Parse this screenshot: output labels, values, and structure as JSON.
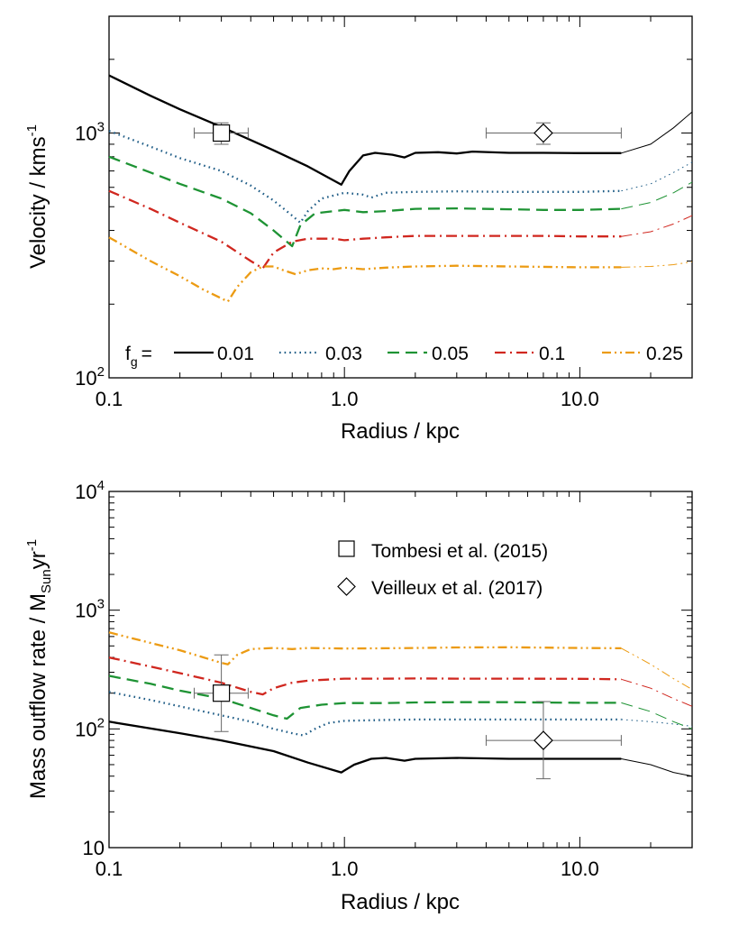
{
  "chart_data": [
    {
      "type": "line",
      "xscale": "log",
      "yscale": "log",
      "xlabel": "Radius / kpc",
      "ylabel": "Velocity / kms",
      "ylabel_sup": "-1",
      "xlim": [
        0.1,
        30
      ],
      "ylim": [
        100,
        3000
      ],
      "xticks": [
        {
          "value": 0.1,
          "label": "0.1"
        },
        {
          "value": 1,
          "label": "1.0"
        },
        {
          "value": 10,
          "label": "10.0"
        }
      ],
      "yticks": [
        {
          "value": 100,
          "base": "10",
          "exp": "2"
        },
        {
          "value": 1000,
          "base": "10",
          "exp": "3"
        }
      ],
      "legend": {
        "prefix": "f",
        "prefix_sub": "g",
        "prefix_suffix": "=",
        "placement": "bottom"
      },
      "series": [
        {
          "name": "0.01",
          "color": "#000000",
          "style": "solid",
          "points": [
            [
              0.1,
              1720
            ],
            [
              0.15,
              1420
            ],
            [
              0.2,
              1250
            ],
            [
              0.3,
              1060
            ],
            [
              0.5,
              850
            ],
            [
              0.7,
              730
            ],
            [
              0.97,
              615
            ],
            [
              1.05,
              700
            ],
            [
              1.2,
              810
            ],
            [
              1.35,
              830
            ],
            [
              1.6,
              815
            ],
            [
              1.8,
              795
            ],
            [
              2.0,
              830
            ],
            [
              2.5,
              835
            ],
            [
              3.0,
              825
            ],
            [
              3.5,
              840
            ],
            [
              5,
              830
            ],
            [
              7,
              830
            ],
            [
              10,
              828
            ],
            [
              15,
              828
            ]
          ],
          "ext": [
            [
              15,
              828
            ],
            [
              20,
              900
            ],
            [
              25,
              1050
            ],
            [
              30,
              1220
            ]
          ]
        },
        {
          "name": "0.03",
          "color": "#1e5c86",
          "style": "dotted",
          "points": [
            [
              0.1,
              1020
            ],
            [
              0.15,
              880
            ],
            [
              0.2,
              790
            ],
            [
              0.3,
              700
            ],
            [
              0.4,
              610
            ],
            [
              0.5,
              530
            ],
            [
              0.6,
              460
            ],
            [
              0.65,
              430
            ],
            [
              0.7,
              480
            ],
            [
              0.8,
              540
            ],
            [
              1.0,
              570
            ],
            [
              1.2,
              560
            ],
            [
              1.3,
              545
            ],
            [
              1.5,
              570
            ],
            [
              2,
              575
            ],
            [
              3,
              578
            ],
            [
              5,
              575
            ],
            [
              7,
              575
            ],
            [
              10,
              575
            ],
            [
              15,
              580
            ]
          ],
          "ext": [
            [
              15,
              580
            ],
            [
              20,
              620
            ],
            [
              25,
              690
            ],
            [
              30,
              760
            ]
          ]
        },
        {
          "name": "0.05",
          "color": "#1e9334",
          "style": "dashed",
          "points": [
            [
              0.1,
              800
            ],
            [
              0.15,
              690
            ],
            [
              0.2,
              620
            ],
            [
              0.3,
              540
            ],
            [
              0.4,
              470
            ],
            [
              0.5,
              400
            ],
            [
              0.55,
              370
            ],
            [
              0.6,
              345
            ],
            [
              0.65,
              420
            ],
            [
              0.75,
              470
            ],
            [
              1.0,
              485
            ],
            [
              1.2,
              475
            ],
            [
              1.5,
              480
            ],
            [
              2,
              490
            ],
            [
              3,
              492
            ],
            [
              5,
              488
            ],
            [
              7,
              485
            ],
            [
              10,
              485
            ],
            [
              15,
              490
            ]
          ],
          "ext": [
            [
              15,
              490
            ],
            [
              20,
              520
            ],
            [
              25,
              570
            ],
            [
              30,
              630
            ]
          ]
        },
        {
          "name": "0.1",
          "color": "#d0271f",
          "style": "dashdot",
          "points": [
            [
              0.1,
              580
            ],
            [
              0.15,
              490
            ],
            [
              0.2,
              430
            ],
            [
              0.3,
              360
            ],
            [
              0.4,
              300
            ],
            [
              0.45,
              280
            ],
            [
              0.5,
              325
            ],
            [
              0.6,
              360
            ],
            [
              0.7,
              370
            ],
            [
              0.9,
              370
            ],
            [
              1.0,
              365
            ],
            [
              1.2,
              370
            ],
            [
              1.5,
              375
            ],
            [
              2,
              380
            ],
            [
              3,
              380
            ],
            [
              5,
              380
            ],
            [
              7,
              380
            ],
            [
              10,
              378
            ],
            [
              15,
              378
            ]
          ],
          "ext": [
            [
              15,
              378
            ],
            [
              20,
              395
            ],
            [
              25,
              425
            ],
            [
              30,
              460
            ]
          ]
        },
        {
          "name": "0.25",
          "color": "#ec9b13",
          "style": "dashdotdot",
          "points": [
            [
              0.1,
              375
            ],
            [
              0.15,
              300
            ],
            [
              0.2,
              260
            ],
            [
              0.25,
              230
            ],
            [
              0.32,
              205
            ],
            [
              0.35,
              235
            ],
            [
              0.4,
              270
            ],
            [
              0.45,
              285
            ],
            [
              0.5,
              285
            ],
            [
              0.55,
              275
            ],
            [
              0.62,
              265
            ],
            [
              0.7,
              275
            ],
            [
              0.8,
              280
            ],
            [
              0.9,
              278
            ],
            [
              1.0,
              282
            ],
            [
              1.2,
              278
            ],
            [
              1.5,
              282
            ],
            [
              2,
              285
            ],
            [
              3,
              287
            ],
            [
              5,
              285
            ],
            [
              10,
              283
            ],
            [
              15,
              283
            ]
          ],
          "ext": [
            [
              15,
              283
            ],
            [
              20,
              285
            ],
            [
              25,
              290
            ],
            [
              30,
              298
            ]
          ]
        }
      ],
      "observations": [
        {
          "label": "Tombesi et al. (2015)",
          "marker": "square",
          "x": 0.3,
          "y": 1000,
          "xerr": [
            0.23,
            0.39
          ],
          "yerr": [
            900,
            1100
          ]
        },
        {
          "label": "Veilleux et al. (2017)",
          "marker": "diamond",
          "x": 7,
          "y": 1000,
          "xerr": [
            4,
            15
          ],
          "yerr": [
            900,
            1100
          ]
        }
      ]
    },
    {
      "type": "line",
      "xscale": "log",
      "yscale": "log",
      "xlabel": "Radius / kpc",
      "ylabel": "Mass outflow rate / M",
      "ylabel_sub": "Sun",
      "ylabel_tail": "yr",
      "ylabel_sup": "-1",
      "xlim": [
        0.1,
        30
      ],
      "ylim": [
        10,
        10000
      ],
      "xticks": [
        {
          "value": 0.1,
          "label": "0.1"
        },
        {
          "value": 1,
          "label": "1.0"
        },
        {
          "value": 10,
          "label": "10.0"
        }
      ],
      "yticks": [
        {
          "value": 10,
          "base": "10",
          "exp": ""
        },
        {
          "value": 100,
          "base": "10",
          "exp": "2"
        },
        {
          "value": 1000,
          "base": "10",
          "exp": "3"
        },
        {
          "value": 10000,
          "base": "10",
          "exp": "4"
        }
      ],
      "legend": {
        "placement": "top-center",
        "entries": [
          {
            "marker": "square",
            "label": "Tombesi et al. (2015)"
          },
          {
            "marker": "diamond",
            "label": "Veilleux et al. (2017)"
          }
        ]
      },
      "series": [
        {
          "name": "0.01",
          "color": "#000000",
          "style": "solid",
          "points": [
            [
              0.1,
              115
            ],
            [
              0.2,
              92
            ],
            [
              0.3,
              80
            ],
            [
              0.5,
              65
            ],
            [
              0.7,
              52
            ],
            [
              0.97,
              43
            ],
            [
              1.1,
              50
            ],
            [
              1.3,
              56
            ],
            [
              1.5,
              57
            ],
            [
              1.8,
              54
            ],
            [
              2.0,
              56
            ],
            [
              3,
              57
            ],
            [
              5,
              56
            ],
            [
              10,
              56
            ],
            [
              15,
              56
            ]
          ],
          "ext": [
            [
              15,
              56
            ],
            [
              20,
              50
            ],
            [
              25,
              43
            ],
            [
              30,
              40
            ]
          ]
        },
        {
          "name": "0.03",
          "color": "#1e5c86",
          "style": "dotted",
          "points": [
            [
              0.1,
              205
            ],
            [
              0.15,
              175
            ],
            [
              0.2,
              155
            ],
            [
              0.3,
              130
            ],
            [
              0.4,
              115
            ],
            [
              0.5,
              100
            ],
            [
              0.6,
              92
            ],
            [
              0.67,
              88
            ],
            [
              0.75,
              100
            ],
            [
              0.85,
              112
            ],
            [
              1.0,
              117
            ],
            [
              1.5,
              119
            ],
            [
              2,
              120
            ],
            [
              3,
              120
            ],
            [
              5,
              120
            ],
            [
              10,
              120
            ],
            [
              15,
              120
            ]
          ],
          "ext": [
            [
              15,
              120
            ],
            [
              20,
              115
            ],
            [
              25,
              110
            ],
            [
              30,
              105
            ]
          ]
        },
        {
          "name": "0.05",
          "color": "#1e9334",
          "style": "dashed",
          "points": [
            [
              0.1,
              280
            ],
            [
              0.15,
              240
            ],
            [
              0.2,
              210
            ],
            [
              0.3,
              180
            ],
            [
              0.4,
              150
            ],
            [
              0.5,
              130
            ],
            [
              0.57,
              122
            ],
            [
              0.65,
              150
            ],
            [
              0.8,
              160
            ],
            [
              1.0,
              165
            ],
            [
              1.5,
              165
            ],
            [
              2,
              167
            ],
            [
              3,
              168
            ],
            [
              5,
              168
            ],
            [
              10,
              166
            ],
            [
              15,
              166
            ]
          ],
          "ext": [
            [
              15,
              166
            ],
            [
              20,
              140
            ],
            [
              25,
              115
            ],
            [
              30,
              100
            ]
          ]
        },
        {
          "name": "0.1",
          "color": "#d0271f",
          "style": "dashdot",
          "points": [
            [
              0.1,
              400
            ],
            [
              0.15,
              335
            ],
            [
              0.2,
              295
            ],
            [
              0.3,
              245
            ],
            [
              0.4,
              205
            ],
            [
              0.45,
              195
            ],
            [
              0.5,
              220
            ],
            [
              0.6,
              245
            ],
            [
              0.7,
              255
            ],
            [
              0.9,
              262
            ],
            [
              1.0,
              265
            ],
            [
              1.5,
              265
            ],
            [
              2,
              266
            ],
            [
              3,
              265
            ],
            [
              5,
              265
            ],
            [
              10,
              264
            ],
            [
              15,
              262
            ]
          ],
          "ext": [
            [
              15,
              262
            ],
            [
              20,
              220
            ],
            [
              25,
              180
            ],
            [
              30,
              155
            ]
          ]
        },
        {
          "name": "0.25",
          "color": "#ec9b13",
          "style": "dashdotdot",
          "points": [
            [
              0.1,
              650
            ],
            [
              0.15,
              530
            ],
            [
              0.2,
              460
            ],
            [
              0.3,
              360
            ],
            [
              0.32,
              350
            ],
            [
              0.35,
              420
            ],
            [
              0.4,
              470
            ],
            [
              0.5,
              480
            ],
            [
              0.6,
              470
            ],
            [
              0.7,
              480
            ],
            [
              1,
              475
            ],
            [
              1.5,
              478
            ],
            [
              2,
              480
            ],
            [
              3,
              485
            ],
            [
              5,
              487
            ],
            [
              10,
              480
            ],
            [
              15,
              478
            ]
          ],
          "ext": [
            [
              15,
              478
            ],
            [
              20,
              350
            ],
            [
              25,
              265
            ],
            [
              30,
              215
            ]
          ]
        }
      ],
      "observations": [
        {
          "label": "Tombesi et al. (2015)",
          "marker": "square",
          "x": 0.3,
          "y": 200,
          "xerr": [
            0.23,
            0.39
          ],
          "yerr": [
            95,
            420
          ]
        },
        {
          "label": "Veilleux et al. (2017)",
          "marker": "diamond",
          "x": 7,
          "y": 80,
          "xerr": [
            4,
            15
          ],
          "yerr": [
            38,
            170
          ]
        }
      ]
    }
  ]
}
